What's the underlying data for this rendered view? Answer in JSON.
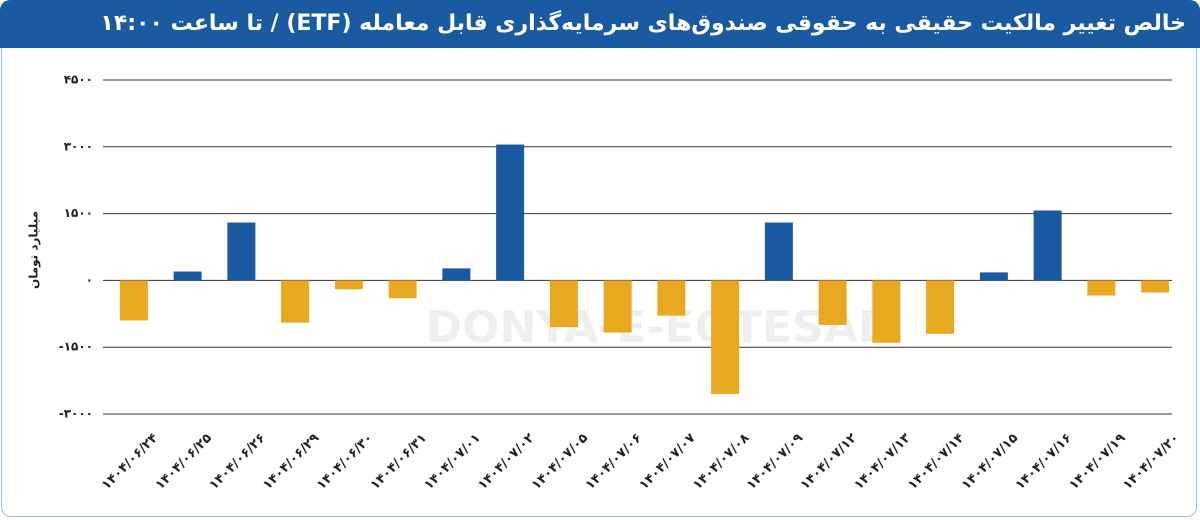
{
  "chart_data": {
    "type": "bar",
    "title": "خالص تغییر مالکیت حقیقی به حقوقی صندوق‌های سرمایه‌گذاری قابل معامله (ETF) / تا ساعت ۱۴:۰۰",
    "y_label": "میلیارد تومان",
    "watermark": "DONYA-E-EQTESAD",
    "categories": [
      "۱۴۰۴/۰۶/۲۴",
      "۱۴۰۴/۰۶/۲۵",
      "۱۴۰۴/۰۶/۲۶",
      "۱۴۰۴/۰۶/۲۹",
      "۱۴۰۴/۰۶/۳۰",
      "۱۴۰۴/۰۶/۳۱",
      "۱۴۰۴/۰۷/۰۱",
      "۱۴۰۴/۰۷/۰۲",
      "۱۴۰۴/۰۷/۰۵",
      "۱۴۰۴/۰۷/۰۶",
      "۱۴۰۴/۰۷/۰۷",
      "۱۴۰۴/۰۷/۰۸",
      "۱۴۰۴/۰۷/۰۹",
      "۱۴۰۴/۰۷/۱۲",
      "۱۴۰۴/۰۷/۱۳",
      "۱۴۰۴/۰۷/۱۴",
      "۱۴۰۴/۰۷/۱۵",
      "۱۴۰۴/۰۷/۱۶",
      "۱۴۰۴/۰۷/۱۹",
      "۱۴۰۴/۰۷/۲۰"
    ],
    "values": [
      -900,
      200,
      1300,
      -950,
      -200,
      -400,
      270,
      3050,
      -1050,
      -1170,
      -790,
      -2550,
      1300,
      -1000,
      -1400,
      -1200,
      180,
      1570,
      -340,
      -270
    ],
    "positive_color": "#1a5aa0",
    "negative_color": "#e8a920",
    "ylim": [
      -3000,
      4500
    ],
    "yticks": [
      {
        "value": -3000,
        "label": "-۳۰۰۰"
      },
      {
        "value": -1500,
        "label": "-۱۵۰۰"
      },
      {
        "value": 0,
        "label": "۰"
      },
      {
        "value": 1500,
        "label": "۱۵۰۰"
      },
      {
        "value": 3000,
        "label": "۳۰۰۰"
      },
      {
        "value": 4500,
        "label": "۴۵۰۰"
      }
    ],
    "grid": true
  }
}
